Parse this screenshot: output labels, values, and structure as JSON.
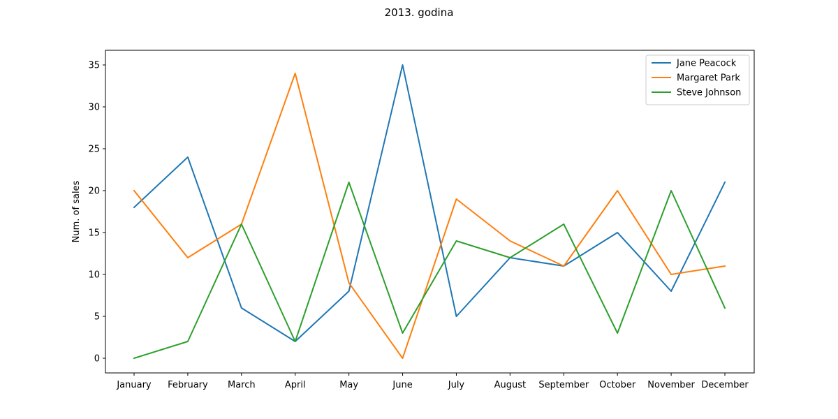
{
  "chart_data": {
    "type": "line",
    "title": "2013. godina",
    "xlabel": "",
    "ylabel": "Num. of sales",
    "categories": [
      "January",
      "February",
      "March",
      "April",
      "May",
      "June",
      "July",
      "August",
      "September",
      "October",
      "November",
      "December"
    ],
    "yticks": [
      0,
      5,
      10,
      15,
      20,
      25,
      30,
      35
    ],
    "ylim": [
      -1.75,
      36.75
    ],
    "grid": false,
    "legend_position": "top-right",
    "series": [
      {
        "name": "Jane Peacock",
        "color": "#1f77b4",
        "values": [
          18,
          24,
          6,
          2,
          8,
          35,
          5,
          12,
          11,
          15,
          8,
          21
        ]
      },
      {
        "name": "Margaret Park",
        "color": "#ff7f0e",
        "values": [
          20,
          12,
          16,
          34,
          9,
          0,
          19,
          14,
          11,
          20,
          10,
          11
        ]
      },
      {
        "name": "Steve Johnson",
        "color": "#2ca02c",
        "values": [
          0,
          2,
          16,
          2,
          21,
          3,
          14,
          12,
          16,
          3,
          20,
          6
        ]
      }
    ]
  }
}
